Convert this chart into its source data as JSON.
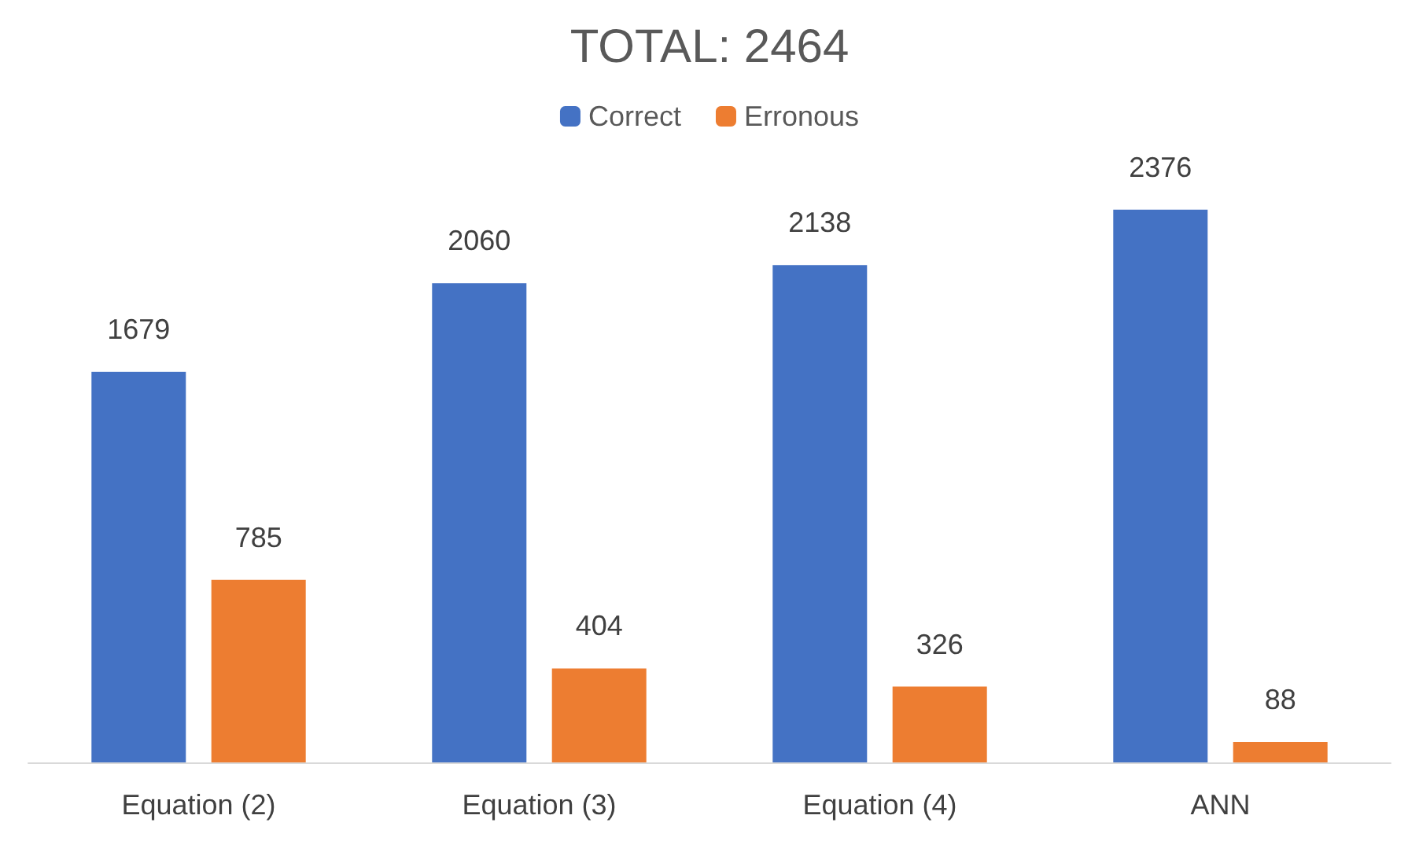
{
  "chart_data": {
    "type": "bar",
    "title": "TOTAL: 2464",
    "categories": [
      "Equation (2)",
      "Equation (3)",
      "Equation (4)",
      "ANN"
    ],
    "series": [
      {
        "name": "Correct",
        "color": "#4472c4",
        "values": [
          1679,
          2060,
          2138,
          2376
        ]
      },
      {
        "name": "Erronous",
        "color": "#ed7d31",
        "values": [
          785,
          404,
          326,
          88
        ]
      }
    ],
    "data_labels": true,
    "legend": "top"
  }
}
